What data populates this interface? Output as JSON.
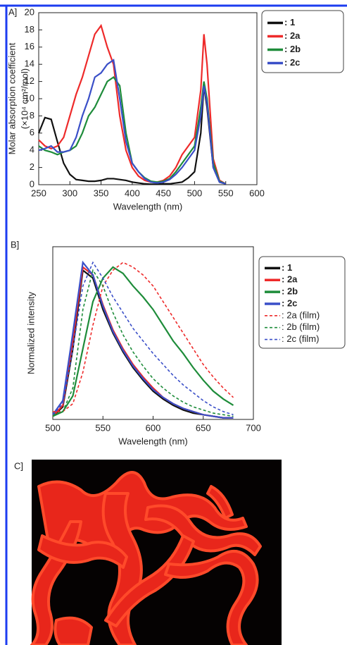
{
  "chart_data": [
    {
      "type": "line",
      "panel_label": "A]",
      "xlabel": "Wavelength (nm)",
      "ylabel": [
        "Molar absorption coefficient",
        "(×10⁴ cm²/mol)"
      ],
      "x": [
        250,
        260,
        270,
        280,
        290,
        300,
        310,
        320,
        330,
        340,
        350,
        360,
        370,
        380,
        390,
        400,
        410,
        420,
        430,
        440,
        450,
        460,
        470,
        480,
        490,
        500,
        510,
        515,
        520,
        530,
        540,
        550
      ],
      "xlim": [
        250,
        600
      ],
      "xticks": [
        250,
        300,
        350,
        400,
        450,
        500,
        550,
        600
      ],
      "ylim": [
        0,
        20
      ],
      "yticks": [
        0,
        2,
        4,
        6,
        8,
        10,
        12,
        14,
        16,
        18,
        20
      ],
      "series": [
        {
          "name": ": 1",
          "color": "#111111",
          "values": [
            6,
            7.8,
            7.6,
            5,
            2.5,
            1.2,
            0.6,
            0.5,
            0.4,
            0.4,
            0.5,
            0.7,
            0.7,
            0.6,
            0.5,
            0.3,
            0.2,
            0.1,
            0.05,
            0.05,
            0.1,
            0.1,
            0.2,
            0.3,
            0.8,
            1.5,
            6,
            11.5,
            9,
            2,
            0.3,
            0.1
          ]
        },
        {
          "name": ": 2a",
          "color": "#ee2a2a",
          "values": [
            5.2,
            4.5,
            4.2,
            4.5,
            5.5,
            8,
            10.5,
            12.5,
            15,
            17.5,
            18.5,
            16,
            14,
            8,
            4,
            2,
            1,
            0.5,
            0.3,
            0.3,
            0.5,
            1,
            2,
            3.5,
            4.5,
            5.5,
            11,
            17.5,
            14,
            3,
            0.5,
            0.1
          ]
        },
        {
          "name": ": 2b",
          "color": "#1e8c3a",
          "values": [
            4.5,
            4,
            3.8,
            3.5,
            3.8,
            4,
            4.5,
            6,
            8,
            9,
            10.5,
            12,
            12.5,
            11.5,
            6,
            2.5,
            1.5,
            0.8,
            0.4,
            0.3,
            0.4,
            0.7,
            1.5,
            2.5,
            3.5,
            4.5,
            9,
            12,
            10,
            2.5,
            0.4,
            0.1
          ]
        },
        {
          "name": ": 2c",
          "color": "#3a4fc8",
          "values": [
            4,
            4.2,
            4.5,
            3.8,
            3.8,
            4,
            5.5,
            8,
            10,
            12.5,
            13,
            14,
            14.5,
            10,
            5,
            2.5,
            1.5,
            0.7,
            0.3,
            0.2,
            0.3,
            0.6,
            1.2,
            2,
            3,
            4,
            8,
            11.5,
            9.5,
            2,
            0.3,
            0.1
          ]
        }
      ]
    },
    {
      "type": "line",
      "panel_label": "B]",
      "xlabel": "Wavelength (nm)",
      "ylabel": [
        "Normalized intensity"
      ],
      "x": [
        500,
        510,
        520,
        530,
        540,
        550,
        560,
        570,
        580,
        590,
        600,
        610,
        620,
        630,
        640,
        650,
        660,
        670,
        680
      ],
      "xlim": [
        500,
        700
      ],
      "xticks": [
        500,
        550,
        600,
        650,
        700
      ],
      "ylim": [
        0,
        1.1
      ],
      "series": [
        {
          "name": ": 1",
          "color": "#111111",
          "values": [
            0.02,
            0.08,
            0.45,
            0.95,
            0.9,
            0.7,
            0.55,
            0.43,
            0.33,
            0.25,
            0.18,
            0.13,
            0.09,
            0.06,
            0.04,
            0.03,
            0.02,
            0.01,
            0.01
          ]
        },
        {
          "name": ": 2a",
          "color": "#ee2a2a",
          "values": [
            0.02,
            0.09,
            0.5,
            0.97,
            0.92,
            0.73,
            0.57,
            0.45,
            0.35,
            0.27,
            0.2,
            0.14,
            0.1,
            0.07,
            0.05,
            0.03,
            0.02,
            0.01,
            0.01
          ]
        },
        {
          "name": ": 2b",
          "color": "#1e8c3a",
          "values": [
            0.02,
            0.05,
            0.15,
            0.45,
            0.75,
            0.9,
            0.97,
            0.93,
            0.85,
            0.78,
            0.7,
            0.6,
            0.5,
            0.42,
            0.33,
            0.25,
            0.18,
            0.13,
            0.09
          ]
        },
        {
          "name": ": 2c",
          "color": "#3a4fc8",
          "values": [
            0.03,
            0.12,
            0.55,
            1,
            0.92,
            0.72,
            0.56,
            0.44,
            0.34,
            0.26,
            0.19,
            0.14,
            0.1,
            0.07,
            0.05,
            0.03,
            0.02,
            0.01,
            0.01
          ]
        },
        {
          "name": ": 2a (film)",
          "color": "#ee2a2a",
          "dash": true,
          "values": [
            0.05,
            0.05,
            0.1,
            0.3,
            0.6,
            0.85,
            0.95,
            1,
            0.97,
            0.92,
            0.85,
            0.75,
            0.65,
            0.55,
            0.45,
            0.35,
            0.27,
            0.2,
            0.14
          ]
        },
        {
          "name": ": 2b (film)",
          "color": "#1e8c3a",
          "dash": true,
          "values": [
            0.03,
            0.05,
            0.2,
            0.7,
            0.95,
            0.85,
            0.68,
            0.54,
            0.43,
            0.34,
            0.26,
            0.2,
            0.15,
            0.11,
            0.08,
            0.06,
            0.04,
            0.03,
            0.02
          ]
        },
        {
          "name": ": 2c (film)",
          "color": "#3a4fc8",
          "dash": true,
          "values": [
            0.03,
            0.1,
            0.45,
            0.85,
            1,
            0.9,
            0.78,
            0.68,
            0.58,
            0.5,
            0.42,
            0.35,
            0.28,
            0.22,
            0.17,
            0.12,
            0.08,
            0.05,
            0.03
          ]
        }
      ]
    }
  ],
  "image_panel": {
    "label": "C]"
  }
}
